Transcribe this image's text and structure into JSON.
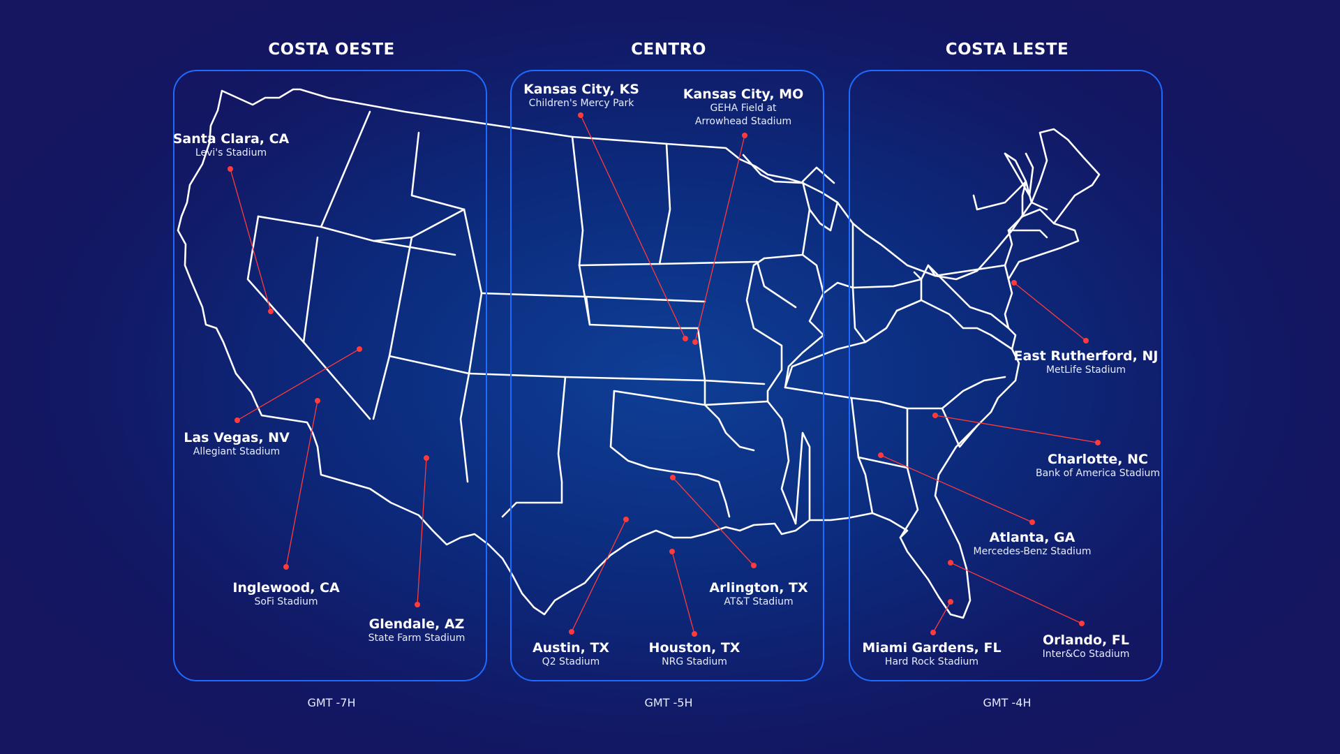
{
  "zones": [
    {
      "title": "COSTA OESTE",
      "timezone": "GMT -7H"
    },
    {
      "title": "CENTRO",
      "timezone": "GMT -5H"
    },
    {
      "title": "COSTA LESTE",
      "timezone": "GMT -4H"
    }
  ],
  "cities": [
    {
      "name": "Santa Clara, CA",
      "venue": "Levi's Stadium"
    },
    {
      "name": "Las Vegas, NV",
      "venue": "Allegiant Stadium"
    },
    {
      "name": "Inglewood, CA",
      "venue": "SoFi Stadium"
    },
    {
      "name": "Glendale, AZ",
      "venue": "State Farm Stadium"
    },
    {
      "name": "Kansas City, KS",
      "venue": "Children's Mercy Park"
    },
    {
      "name": "Kansas City, MO",
      "venue": "GEHA Field at",
      "venue2": "Arrowhead Stadium"
    },
    {
      "name": "Austin, TX",
      "venue": "Q2 Stadium"
    },
    {
      "name": "Houston, TX",
      "venue": "NRG Stadium"
    },
    {
      "name": "Arlington, TX",
      "venue": "AT&T Stadium"
    },
    {
      "name": "East Rutherford, NJ",
      "venue": "MetLife Stadium"
    },
    {
      "name": "Charlotte, NC",
      "venue": "Bank of America Stadium"
    },
    {
      "name": "Atlanta, GA",
      "venue": "Mercedes-Benz Stadium"
    },
    {
      "name": "Miami Gardens, FL",
      "venue": "Hard Rock Stadium"
    },
    {
      "name": "Orlando, FL",
      "venue": "Inter&Co Stadium"
    }
  ],
  "colors": {
    "background": "#121864",
    "zone_border": "#1f6bff",
    "map_outline": "#ffffff",
    "marker": "#ff3b3b"
  }
}
